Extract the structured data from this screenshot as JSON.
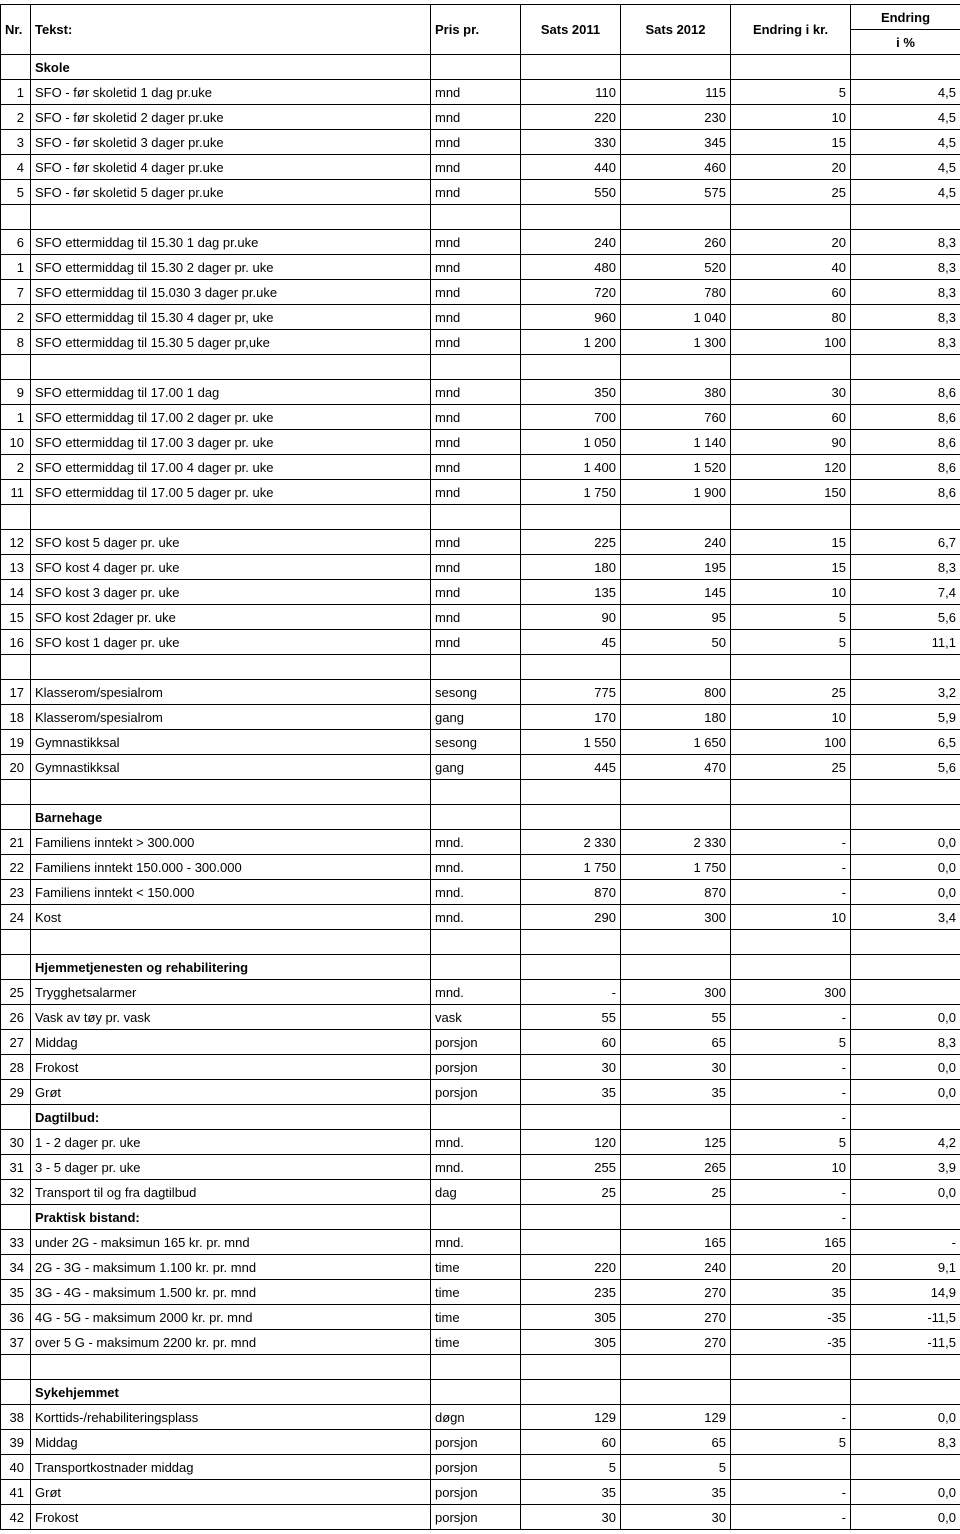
{
  "headers": {
    "nr": "Nr.",
    "tekst": "Tekst:",
    "pris": "Pris pr.",
    "s11": "Sats 2011",
    "s12": "Sats 2012",
    "diff": "Endring i kr.",
    "pct_top": "Endring",
    "pct_bot": "i %"
  },
  "rows": [
    {
      "type": "section",
      "txt": "Skole"
    },
    {
      "nr": "1",
      "txt": "SFO - før skoletid 1 dag pr.uke",
      "unit": "mnd",
      "s11": "110",
      "s12": "115",
      "diff": "5",
      "pct": "4,5"
    },
    {
      "nr": "2",
      "txt": "SFO - før skoletid 2 dager pr.uke",
      "unit": "mnd",
      "s11": "220",
      "s12": "230",
      "diff": "10",
      "pct": "4,5"
    },
    {
      "nr": "3",
      "txt": "SFO - før skoletid 3 dager pr.uke",
      "unit": "mnd",
      "s11": "330",
      "s12": "345",
      "diff": "15",
      "pct": "4,5"
    },
    {
      "nr": "4",
      "txt": "SFO - før skoletid 4 dager pr.uke",
      "unit": "mnd",
      "s11": "440",
      "s12": "460",
      "diff": "20",
      "pct": "4,5"
    },
    {
      "nr": "5",
      "txt": "SFO - før skoletid 5 dager pr.uke",
      "unit": "mnd",
      "s11": "550",
      "s12": "575",
      "diff": "25",
      "pct": "4,5"
    },
    {
      "type": "blank"
    },
    {
      "nr": "6",
      "txt": "SFO ettermiddag til 15.30 1 dag pr.uke",
      "unit": "mnd",
      "s11": "240",
      "s12": "260",
      "diff": "20",
      "pct": "8,3"
    },
    {
      "nr": "1",
      "txt": "SFO ettermiddag til 15.30 2 dager pr. uke",
      "unit": "mnd",
      "s11": "480",
      "s12": "520",
      "diff": "40",
      "pct": "8,3"
    },
    {
      "nr": "7",
      "txt": "SFO ettermiddag til 15.030 3 dager pr.uke",
      "unit": "mnd",
      "s11": "720",
      "s12": "780",
      "diff": "60",
      "pct": "8,3"
    },
    {
      "nr": "2",
      "txt": "SFO ettermiddag til 15.30 4 dager pr, uke",
      "unit": "mnd",
      "s11": "960",
      "s12": "1 040",
      "diff": "80",
      "pct": "8,3"
    },
    {
      "nr": "8",
      "txt": "SFO ettermiddag til 15.30 5 dager pr,uke",
      "unit": "mnd",
      "s11": "1 200",
      "s12": "1 300",
      "diff": "100",
      "pct": "8,3"
    },
    {
      "type": "blank"
    },
    {
      "nr": "9",
      "txt": "SFO ettermiddag til 17.00 1 dag",
      "unit": "mnd",
      "s11": "350",
      "s12": "380",
      "diff": "30",
      "pct": "8,6"
    },
    {
      "nr": "1",
      "txt": "SFO ettermiddag til 17.00 2 dager pr. uke",
      "unit": "mnd",
      "s11": "700",
      "s12": "760",
      "diff": "60",
      "pct": "8,6"
    },
    {
      "nr": "10",
      "txt": "SFO ettermiddag til 17.00 3 dager pr. uke",
      "unit": "mnd",
      "s11": "1 050",
      "s12": "1 140",
      "diff": "90",
      "pct": "8,6"
    },
    {
      "nr": "2",
      "txt": "SFO ettermiddag til 17.00 4 dager pr. uke",
      "unit": "mnd",
      "s11": "1 400",
      "s12": "1 520",
      "diff": "120",
      "pct": "8,6"
    },
    {
      "nr": "11",
      "txt": "SFO ettermiddag til 17.00 5 dager pr. uke",
      "unit": "mnd",
      "s11": "1 750",
      "s12": "1 900",
      "diff": "150",
      "pct": "8,6"
    },
    {
      "type": "blank"
    },
    {
      "nr": "12",
      "txt": "SFO kost 5 dager pr. uke",
      "unit": "mnd",
      "s11": "225",
      "s12": "240",
      "diff": "15",
      "pct": "6,7"
    },
    {
      "nr": "13",
      "txt": "SFO kost 4 dager pr. uke",
      "unit": "mnd",
      "s11": "180",
      "s12": "195",
      "diff": "15",
      "pct": "8,3"
    },
    {
      "nr": "14",
      "txt": "SFO kost 3 dager pr. uke",
      "unit": "mnd",
      "s11": "135",
      "s12": "145",
      "diff": "10",
      "pct": "7,4"
    },
    {
      "nr": "15",
      "txt": "SFO kost 2dager pr. uke",
      "unit": "mnd",
      "s11": "90",
      "s12": "95",
      "diff": "5",
      "pct": "5,6"
    },
    {
      "nr": "16",
      "txt": "SFO kost 1 dager pr. uke",
      "unit": "mnd",
      "s11": "45",
      "s12": "50",
      "diff": "5",
      "pct": "11,1"
    },
    {
      "type": "blank"
    },
    {
      "nr": "17",
      "txt": "Klasserom/spesialrom",
      "unit": "sesong",
      "s11": "775",
      "s12": "800",
      "diff": "25",
      "pct": "3,2"
    },
    {
      "nr": "18",
      "txt": "Klasserom/spesialrom",
      "unit": "gang",
      "s11": "170",
      "s12": "180",
      "diff": "10",
      "pct": "5,9"
    },
    {
      "nr": "19",
      "txt": "Gymnastikksal",
      "unit": "sesong",
      "s11": "1 550",
      "s12": "1 650",
      "diff": "100",
      "pct": "6,5"
    },
    {
      "nr": "20",
      "txt": "Gymnastikksal",
      "unit": "gang",
      "s11": "445",
      "s12": "470",
      "diff": "25",
      "pct": "5,6"
    },
    {
      "type": "blank"
    },
    {
      "type": "section",
      "txt": "Barnehage"
    },
    {
      "nr": "21",
      "txt": "Familiens inntekt       > 300.000",
      "unit": "mnd.",
      "s11": "2 330",
      "s12": "2 330",
      "diff": "-",
      "pct": "0,0"
    },
    {
      "nr": "22",
      "txt": "Familiens inntekt   150.000 - 300.000",
      "unit": "mnd.",
      "s11": "1 750",
      "s12": "1 750",
      "diff": "-",
      "pct": "0,0"
    },
    {
      "nr": "23",
      "txt": "Familiens inntekt   < 150.000",
      "unit": "mnd.",
      "s11": "870",
      "s12": "870",
      "diff": "-",
      "pct": "0,0"
    },
    {
      "nr": "24",
      "txt": "Kost",
      "unit": "mnd.",
      "s11": "290",
      "s12": "300",
      "diff": "10",
      "pct": "3,4"
    },
    {
      "type": "blank"
    },
    {
      "type": "section",
      "txt": "Hjemmetjenesten og rehabilitering"
    },
    {
      "nr": "25",
      "txt": "Trygghetsalarmer",
      "unit": "mnd.",
      "s11": "-",
      "s12": "300",
      "diff": "300",
      "pct": ""
    },
    {
      "nr": "26",
      "txt": "Vask av tøy pr. vask",
      "unit": "vask",
      "s11": "55",
      "s12": "55",
      "diff": "-",
      "pct": "0,0"
    },
    {
      "nr": "27",
      "txt": "Middag",
      "unit": "porsjon",
      "s11": "60",
      "s12": "65",
      "diff": "5",
      "pct": "8,3"
    },
    {
      "nr": "28",
      "txt": "Frokost",
      "unit": "porsjon",
      "s11": "30",
      "s12": "30",
      "diff": "-",
      "pct": "0,0"
    },
    {
      "nr": "29",
      "txt": "Grøt",
      "unit": "porsjon",
      "s11": "35",
      "s12": "35",
      "diff": "-",
      "pct": "0,0"
    },
    {
      "type": "section",
      "txt": "Dagtilbud:",
      "diff": "-"
    },
    {
      "nr": "30",
      "txt": "1 - 2 dager pr. uke",
      "unit": "mnd.",
      "s11": "120",
      "s12": "125",
      "diff": "5",
      "pct": "4,2"
    },
    {
      "nr": "31",
      "txt": "3 - 5 dager pr. uke",
      "unit": "mnd.",
      "s11": "255",
      "s12": "265",
      "diff": "10",
      "pct": "3,9"
    },
    {
      "nr": "32",
      "txt": "Transport til og fra dagtilbud",
      "unit": "dag",
      "s11": "25",
      "s12": "25",
      "diff": "-",
      "pct": "0,0"
    },
    {
      "type": "section",
      "txt": "Praktisk bistand:",
      "diff": "-"
    },
    {
      "nr": "33",
      "txt": "under 2G - maksimun 165 kr. pr. mnd",
      "unit": "mnd.",
      "s11": "",
      "s12": "165",
      "diff": "165",
      "pct": "-"
    },
    {
      "nr": "34",
      "txt": "2G - 3G - maksimum 1.100 kr. pr. mnd",
      "unit": "time",
      "s11": "220",
      "s12": "240",
      "diff": "20",
      "pct": "9,1"
    },
    {
      "nr": "35",
      "txt": "3G - 4G -  maksimum 1.500 kr. pr. mnd",
      "unit": "time",
      "s11": "235",
      "s12": "270",
      "diff": "35",
      "pct": "14,9"
    },
    {
      "nr": "36",
      "txt": "4G - 5G - maksimum 2000 kr. pr. mnd",
      "unit": "time",
      "s11": "305",
      "s12": "270",
      "diff": "-35",
      "pct": "-11,5"
    },
    {
      "nr": "37",
      "txt": "over 5 G - maksimum 2200 kr. pr. mnd",
      "unit": "time",
      "s11": "305",
      "s12": "270",
      "diff": "-35",
      "pct": "-11,5"
    },
    {
      "type": "blank"
    },
    {
      "type": "section",
      "txt": "Sykehjemmet"
    },
    {
      "nr": "38",
      "txt": "Korttids-/rehabiliteringsplass",
      "unit": "døgn",
      "s11": "129",
      "s12": "129",
      "diff": "-",
      "pct": "0,0"
    },
    {
      "nr": "39",
      "txt": "Middag",
      "unit": "porsjon",
      "s11": "60",
      "s12": "65",
      "diff": "5",
      "pct": "8,3"
    },
    {
      "nr": "40",
      "txt": "Transportkostnader middag",
      "unit": "porsjon",
      "s11": "5",
      "s12": "5",
      "diff": "",
      "pct": ""
    },
    {
      "nr": "41",
      "txt": "Grøt",
      "unit": "porsjon",
      "s11": "35",
      "s12": "35",
      "diff": "-",
      "pct": "0,0"
    },
    {
      "nr": "42",
      "txt": "Frokost",
      "unit": "porsjon",
      "s11": "30",
      "s12": "30",
      "diff": "-",
      "pct": "0,0"
    }
  ]
}
